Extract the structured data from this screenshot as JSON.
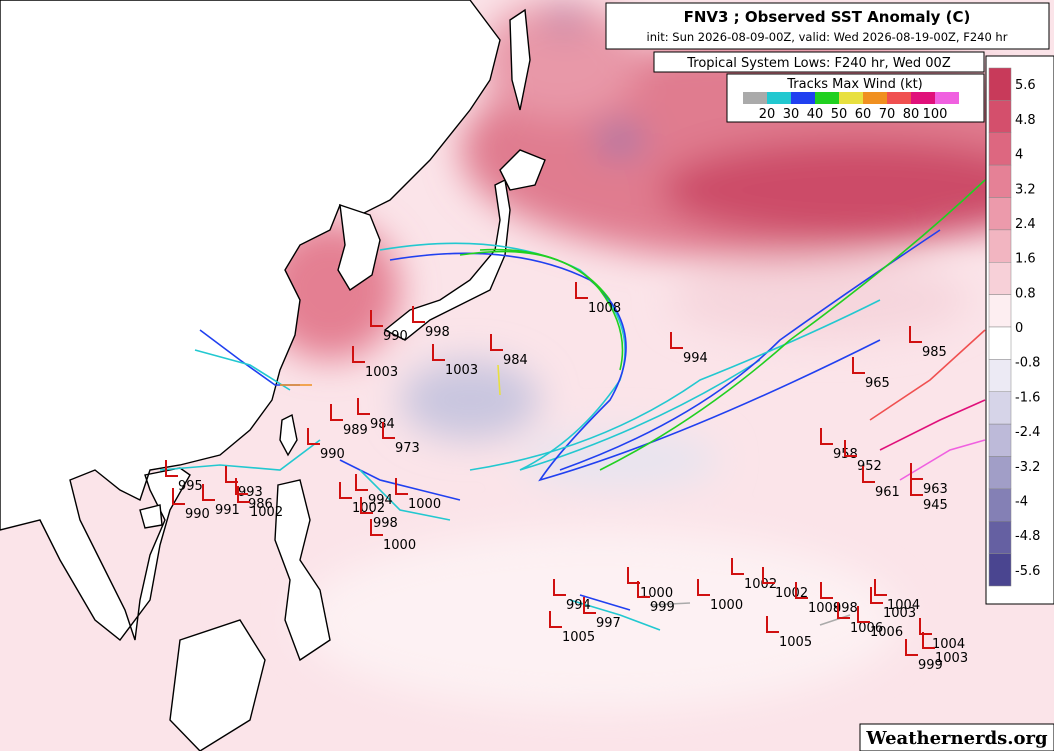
{
  "header": {
    "title": "FNV3 ; Observed SST Anomaly (C)",
    "subtitle": "init: Sun 2026-08-09-00Z, valid: Wed 2026-08-19-00Z, F240 hr"
  },
  "panel_label": "Tropical System Lows: F240 hr, Wed 00Z",
  "wind_legend": {
    "title": "Tracks Max Wind (kt)",
    "ticks": [
      20,
      30,
      40,
      50,
      60,
      70,
      80,
      100
    ],
    "colors": [
      "#aaaaaa",
      "#22c8d0",
      "#2040f0",
      "#20d020",
      "#e8e040",
      "#f09020",
      "#f05050",
      "#e0107a",
      "#f060e0"
    ]
  },
  "colorbar": {
    "ticks": [
      5.6,
      4.8,
      4,
      3.2,
      2.4,
      1.6,
      0.8,
      0,
      -0.8,
      -1.6,
      -2.4,
      -3.2,
      -4,
      -4.8,
      -5.6
    ],
    "colors": [
      "#c83a5a",
      "#d44f6c",
      "#dd6780",
      "#e58196",
      "#ec9aab",
      "#f2b5c1",
      "#f7d0d8",
      "#fdeef1",
      "#ffffff",
      "#eceaf4",
      "#d6d4e8",
      "#bdbad9",
      "#a19ec7",
      "#8480b5",
      "#6560a2",
      "#4a4590"
    ]
  },
  "pressure_labels": [
    1008,
    998,
    990,
    1003,
    1003,
    984,
    994,
    965,
    985,
    989,
    984,
    973,
    990,
    995,
    993,
    986,
    991,
    990,
    1002,
    1002,
    998,
    1000,
    1000,
    994,
    958,
    952,
    961,
    963,
    945,
    1000,
    999,
    1000,
    1002,
    1002,
    1008,
    998,
    1004,
    1003,
    1006,
    1006,
    1004,
    1003,
    999,
    1005,
    994,
    997,
    1005
  ],
  "credit": "Weathernerds.org"
}
